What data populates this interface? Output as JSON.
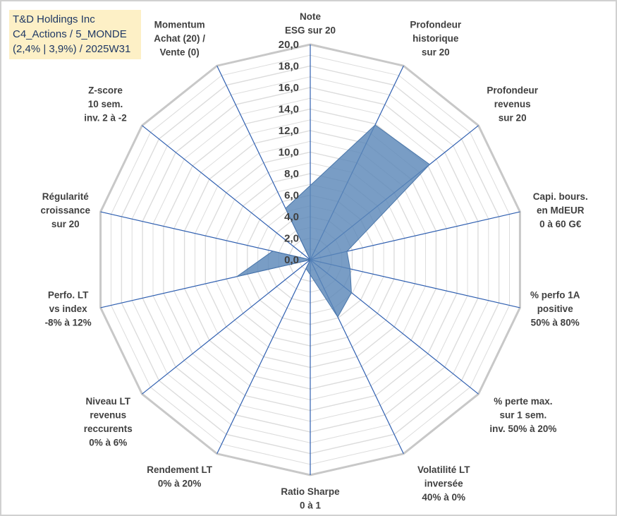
{
  "title_box": {
    "line1": "T&D Holdings Inc",
    "line2": "C4_Actions / 5_MONDE",
    "line3": "(2,4% | 3,9%) / 2025W31"
  },
  "chart_data": {
    "type": "radar",
    "axes": [
      [
        "Note",
        "ESG sur 20"
      ],
      [
        "Profondeur",
        "historique",
        "sur 20"
      ],
      [
        "Profondeur",
        "revenus",
        "sur 20"
      ],
      [
        "Capi. bours.",
        "en MdEUR",
        "0 à 60 G€"
      ],
      [
        "% perfo 1A",
        "positive",
        "50% à 80%"
      ],
      [
        "% perte max.",
        "sur 1 sem.",
        "inv. 50% à 20%"
      ],
      [
        "Volatilité LT",
        "inversée",
        "40% à 0%"
      ],
      [
        "Ratio Sharpe",
        "0 à 1"
      ],
      [
        "Rendement LT",
        "0% à 20%"
      ],
      [
        "Niveau LT",
        "revenus",
        "reccurents",
        "0% à 6%"
      ],
      [
        "Perfo. LT",
        "vs index",
        "-8% à 12%"
      ],
      [
        "Régularité",
        "croissance",
        "sur 20"
      ],
      [
        "Z-score",
        "10 sem.",
        "inv. 2 à -2"
      ],
      [
        "Momentum",
        "Achat (20) /",
        "Vente (0)"
      ]
    ],
    "values": [
      6.9,
      13.9,
      14.2,
      3.5,
      3.8,
      4.9,
      5.9,
      1.4,
      0.9,
      0.0,
      7.0,
      3.6,
      0.0,
      5.3
    ],
    "ylim": [
      0,
      20
    ],
    "ticks": [
      "0,0",
      "2,0",
      "4,0",
      "6,0",
      "8,0",
      "10,0",
      "12,0",
      "14,0",
      "16,0",
      "18,0",
      "20,0"
    ],
    "colors": {
      "fill": "#5b87b8",
      "stroke": "#4a76aa",
      "spoke": "#2f5fb0",
      "outer_grid": "#c8c8c8",
      "inner_grid": "#dcdcdc"
    }
  }
}
